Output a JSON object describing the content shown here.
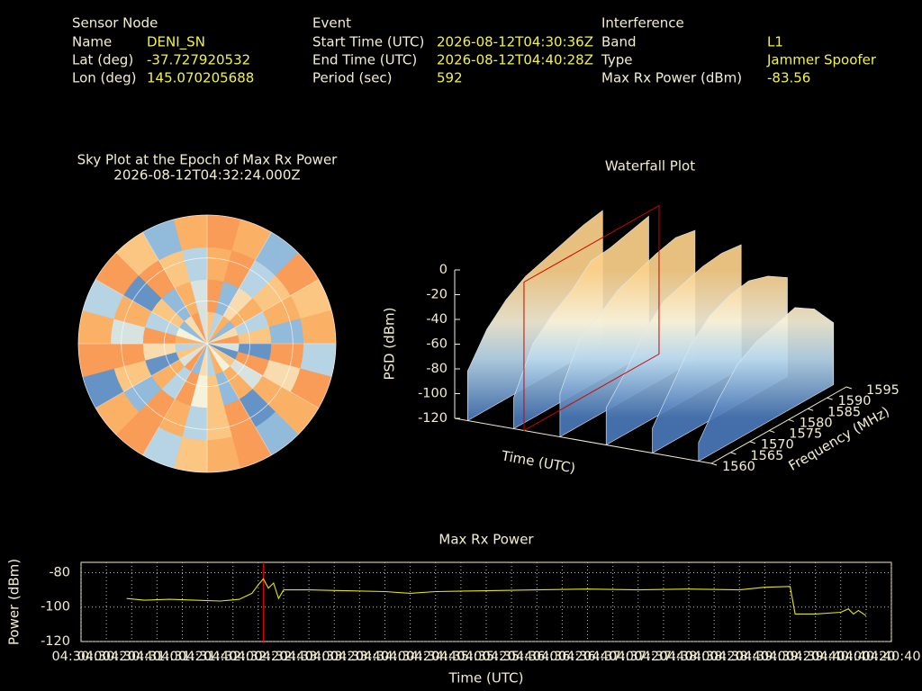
{
  "info": {
    "sensor": {
      "heading": "Sensor Node",
      "rows": [
        [
          "Name",
          "DENI_SN"
        ],
        [
          "Lat (deg)",
          -37.727920532
        ],
        [
          "Lon (deg)",
          145.070205688
        ]
      ]
    },
    "event": {
      "heading": "Event",
      "rows": [
        [
          "Start Time (UTC)",
          "2026-08-12T04:30:36Z"
        ],
        [
          "End Time (UTC)",
          "2026-08-12T04:40:28Z"
        ],
        [
          "Period (sec)",
          592
        ]
      ]
    },
    "interference": {
      "heading": "Interference",
      "rows": [
        [
          "Band",
          "L1"
        ],
        [
          "Type",
          "Jammer  Spoofer"
        ],
        [
          "Max Rx Power (dBm)",
          -83.56
        ]
      ]
    }
  },
  "chart_data": [
    {
      "type": "polar-heatmap",
      "title": "Sky Plot at the Epoch of Max Rx Power",
      "subtitle": "2026-08-12T04:32:24.000Z",
      "values": [
        [
          0.7,
          0.3,
          0.8,
          0.2,
          0.6,
          0.9,
          0.4,
          0.1,
          0.7,
          0.5,
          0.8,
          0.3,
          0.6,
          0.2,
          0.9,
          0.4,
          0.7,
          0.3,
          0.8,
          0.5,
          0.2,
          0.6,
          0.9,
          0.4
        ],
        [
          0.9,
          0.2,
          0.6,
          0.8,
          0.3,
          0.7,
          0.1,
          0.9,
          0.4,
          0.8,
          0.2,
          0.7,
          0.5,
          0.9,
          0.3,
          0.8,
          0.1,
          0.6,
          0.9,
          0.3,
          0.7,
          0.2,
          0.8,
          0.4
        ],
        [
          0.8,
          0.9,
          0.3,
          0.7,
          0.8,
          0.2,
          0.9,
          0.6,
          0.8,
          0.1,
          0.9,
          0.7,
          0.3,
          0.8,
          0.9,
          0.2,
          0.7,
          0.9,
          0.4,
          0.8,
          0.1,
          0.9,
          0.7,
          0.3
        ],
        [
          0.9,
          0.8,
          0.2,
          0.9,
          0.7,
          0.8,
          0.3,
          0.9,
          0.8,
          0.2,
          0.9,
          0.8,
          0.7,
          0.3,
          0.9,
          0.8,
          0.1,
          0.9,
          0.8,
          0.3,
          0.9,
          0.7,
          0.2,
          0.8
        ]
      ]
    },
    {
      "type": "waterfall",
      "title": "Waterfall Plot",
      "zlabel": "PSD (dBm)",
      "xlabel": "Time (UTC)",
      "ylabel": "Frequency (MHz)",
      "zlim": [
        -120,
        0
      ],
      "zticks": [
        0,
        -20,
        -40,
        -60,
        -80,
        -100,
        -120
      ],
      "ylim": [
        1560,
        1595
      ],
      "yticks": [
        1560,
        1565,
        1570,
        1575,
        1580,
        1585,
        1590,
        1595
      ],
      "frequencies": [
        1560,
        1565,
        1570,
        1575,
        1580,
        1585,
        1590,
        1595
      ],
      "series": [
        {
          "values": [
            -80,
            -55,
            -40,
            -30,
            -25,
            -20,
            -15,
            -12
          ]
        },
        {
          "values": [
            -95,
            -60,
            -45,
            -35,
            -20,
            -18,
            -14,
            -10
          ]
        },
        {
          "values": [
            -85,
            -50,
            -40,
            -28,
            -22,
            -16,
            -12,
            -15
          ]
        },
        {
          "values": [
            -90,
            -70,
            -45,
            -30,
            -25,
            -20,
            -18,
            -20
          ]
        },
        {
          "values": [
            -100,
            -75,
            -50,
            -35,
            -28,
            -25,
            -30,
            -40
          ]
        },
        {
          "values": [
            -105,
            -80,
            -60,
            -50,
            -45,
            -40,
            -50,
            -70
          ]
        }
      ]
    },
    {
      "type": "line",
      "title": "Max Rx Power",
      "xlabel": "Time (UTC)",
      "ylabel": "Power (dBm)",
      "color": "#e6e600",
      "grid": true,
      "xlim": [
        "04:30:00",
        "04:40:40"
      ],
      "ylim": [
        -120,
        -74
      ],
      "yticks": [
        -80,
        -100,
        -120
      ],
      "xticks": [
        "04:30:00",
        "04:30:20",
        "04:30:40",
        "04:31:00",
        "04:31:20",
        "04:31:40",
        "04:32:00",
        "04:32:20",
        "04:32:40",
        "04:33:00",
        "04:33:20",
        "04:33:40",
        "04:34:00",
        "04:34:20",
        "04:34:40",
        "04:35:00",
        "04:35:20",
        "04:35:40",
        "04:36:00",
        "04:36:20",
        "04:36:40",
        "04:37:00",
        "04:37:20",
        "04:37:40",
        "04:38:00",
        "04:38:20",
        "04:38:40",
        "04:39:00",
        "04:39:20",
        "04:39:40",
        "04:40:00",
        "04:40:20",
        "04:40:40"
      ],
      "marker": {
        "x": "04:32:24",
        "color": "#e00000"
      },
      "x": [
        "04:30:36",
        "04:30:50",
        "04:31:10",
        "04:31:30",
        "04:31:50",
        "04:32:05",
        "04:32:15",
        "04:32:20",
        "04:32:24",
        "04:32:28",
        "04:32:32",
        "04:32:36",
        "04:32:40",
        "04:33:00",
        "04:33:30",
        "04:34:00",
        "04:34:20",
        "04:34:40",
        "04:35:20",
        "04:36:00",
        "04:36:40",
        "04:37:20",
        "04:38:00",
        "04:38:40",
        "04:39:00",
        "04:39:20",
        "04:39:24",
        "04:39:40",
        "04:40:00",
        "04:40:06",
        "04:40:10",
        "04:40:14",
        "04:40:20"
      ],
      "values": [
        -95,
        -96,
        -95.5,
        -96,
        -96.5,
        -95.5,
        -92,
        -87,
        -83.56,
        -89,
        -86,
        -95,
        -90,
        -90,
        -90.5,
        -91,
        -92,
        -91,
        -90.5,
        -90,
        -89.5,
        -90,
        -89.5,
        -90,
        -88.5,
        -88,
        -104,
        -104,
        -103,
        -101,
        -104,
        -102,
        -105
      ]
    }
  ]
}
